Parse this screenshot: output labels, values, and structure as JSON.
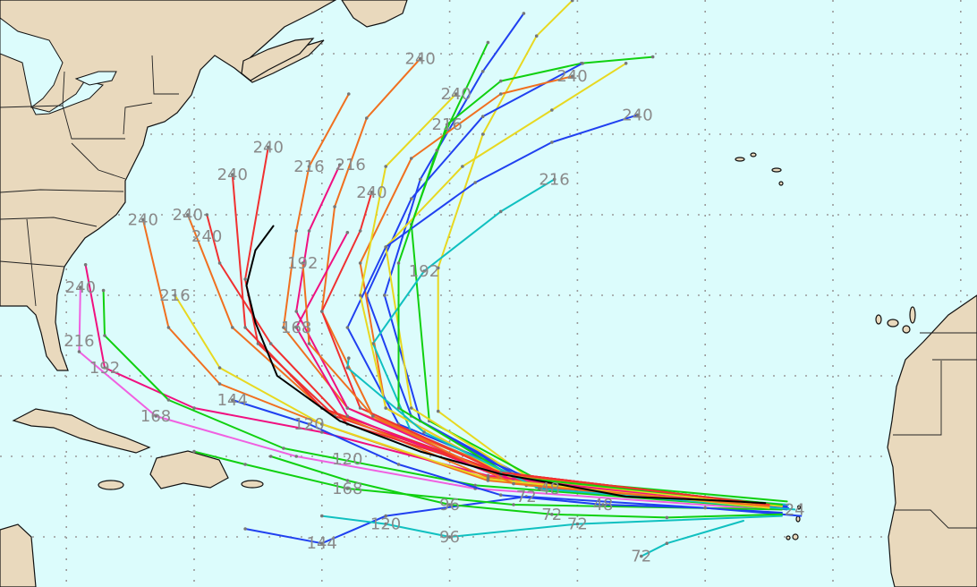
{
  "map": {
    "projection": "lon/lat equirectangular",
    "extent_lon": [
      -85,
      -8
    ],
    "extent_lat": [
      11,
      48
    ],
    "grid_step_lon": 10,
    "grid_step_lat": 5,
    "colors": {
      "ocean": "#dcfcfc",
      "land": "#e9d9bd",
      "consensus": "#000000",
      "label": "#8a8a8a"
    }
  },
  "consensus_track": {
    "color": "#000000",
    "points": [
      [
        -25.3,
        17.1
      ],
      [
        -30,
        17.3
      ],
      [
        -36.2,
        17.5
      ],
      [
        -41,
        18.2
      ],
      [
        -46,
        18.9
      ],
      [
        -52.3,
        20.3
      ],
      [
        -58.6,
        22.2
      ],
      [
        -63.5,
        25
      ],
      [
        -65.2,
        28.3
      ],
      [
        -65.9,
        30.6
      ],
      [
        -65.2,
        32.8
      ],
      [
        -63.8,
        34.3
      ]
    ]
  },
  "tracks": [
    {
      "color": "#2040f0",
      "points": [
        [
          -23.6,
          16.7
        ],
        [
          -43.2,
          18.3
        ],
        [
          -52.3,
          22.2
        ],
        [
          -55.1,
          30
        ],
        [
          -52.3,
          37.2
        ],
        [
          -47.4,
          43.9
        ],
        [
          -44.2,
          47.5
        ]
      ],
      "labels": []
    },
    {
      "color": "#e8d820",
      "points": [
        [
          -23.6,
          16.9
        ],
        [
          -43.2,
          18.3
        ],
        [
          -50.9,
          22.8
        ],
        [
          -50.9,
          31.7
        ],
        [
          -47.4,
          40
        ],
        [
          -43.2,
          46.1
        ],
        [
          -40.4,
          48.3
        ]
      ],
      "labels": []
    },
    {
      "color": "#10d010",
      "points": [
        [
          -23.6,
          17.2
        ],
        [
          -43.2,
          18.6
        ],
        [
          -51.6,
          22.2
        ],
        [
          -53,
          34.4
        ],
        [
          -50.2,
          40.6
        ],
        [
          -46,
          43.3
        ],
        [
          -39.7,
          44.4
        ],
        [
          -34.1,
          44.8
        ]
      ],
      "labels": [
        {
          "hour": "216",
          "pt": 4
        }
      ]
    },
    {
      "color": "#2040f0",
      "points": [
        [
          -23.6,
          16.9
        ],
        [
          -43.2,
          18.1
        ],
        [
          -53,
          22.5
        ],
        [
          -56.5,
          30
        ],
        [
          -53,
          36
        ],
        [
          -47.4,
          41.1
        ],
        [
          -39.6,
          44.4
        ]
      ],
      "labels": []
    },
    {
      "color": "#f07020",
      "points": [
        [
          -24,
          16.8
        ],
        [
          -44,
          18.2
        ],
        [
          -55,
          23
        ],
        [
          -57,
          32
        ],
        [
          -53,
          38.5
        ],
        [
          -46,
          42.5
        ],
        [
          -40.4,
          43.6
        ]
      ],
      "labels": [
        {
          "hour": "240",
          "pt": 6
        }
      ]
    },
    {
      "color": "#e8d820",
      "points": [
        [
          -24,
          16.9
        ],
        [
          -44,
          18.5
        ],
        [
          -53,
          23
        ],
        [
          -55,
          33
        ],
        [
          -49,
          38
        ],
        [
          -42,
          41.5
        ],
        [
          -36.2,
          44.4
        ]
      ],
      "labels": []
    },
    {
      "color": "#2040f0",
      "points": [
        [
          -23.5,
          16.8
        ],
        [
          -43,
          18.4
        ],
        [
          -54,
          22
        ],
        [
          -58,
          28
        ],
        [
          -55,
          33
        ],
        [
          -48,
          37
        ],
        [
          -42,
          39.5
        ],
        [
          -35.3,
          41.2
        ]
      ],
      "labels": [
        {
          "hour": "240",
          "pt": 7
        }
      ]
    },
    {
      "color": "#10c0c0",
      "points": [
        [
          -23.5,
          17
        ],
        [
          -43,
          18.2
        ],
        [
          -53,
          21.5
        ],
        [
          -56,
          27
        ],
        [
          -52,
          31.5
        ],
        [
          -46,
          35.2
        ],
        [
          -41.8,
          37.2
        ]
      ],
      "labels": [
        {
          "hour": "192",
          "pt": 4
        },
        {
          "hour": "216",
          "pt": 6
        }
      ]
    },
    {
      "color": "#f07020",
      "points": [
        [
          -24,
          16.7
        ],
        [
          -44,
          18.5
        ],
        [
          -56,
          22.5
        ],
        [
          -60,
          29
        ],
        [
          -59,
          35.5
        ],
        [
          -56.5,
          41
        ],
        [
          -52.3,
          44.7
        ]
      ],
      "labels": [
        {
          "hour": "240",
          "pt": 6
        }
      ]
    },
    {
      "color": "#f07020",
      "points": [
        [
          -24,
          16.9
        ],
        [
          -45,
          18.8
        ],
        [
          -58,
          23
        ],
        [
          -63,
          28
        ],
        [
          -62,
          34
        ],
        [
          -61,
          38
        ],
        [
          -57.9,
          42.5
        ]
      ],
      "labels": [
        {
          "hour": "216",
          "pt": 5
        }
      ]
    },
    {
      "color": "#f03030",
      "points": [
        [
          -25,
          17
        ],
        [
          -46,
          19
        ],
        [
          -59,
          22.5
        ],
        [
          -65,
          27
        ],
        [
          -66,
          31
        ],
        [
          -64.2,
          39.2
        ]
      ],
      "labels": [
        {
          "hour": "240",
          "pt": 5
        }
      ]
    },
    {
      "color": "#f07020",
      "points": [
        [
          -25,
          16.8
        ],
        [
          -47,
          18.5
        ],
        [
          -60,
          22
        ],
        [
          -68,
          24.5
        ],
        [
          -72,
          28
        ],
        [
          -74,
          34.7
        ]
      ],
      "labels": [
        {
          "hour": "240",
          "pt": 5
        }
      ]
    },
    {
      "color": "#f01080",
      "points": [
        [
          -25,
          16.9
        ],
        [
          -47,
          18.8
        ],
        [
          -60,
          21.5
        ],
        [
          -70,
          23
        ],
        [
          -77,
          25.5
        ],
        [
          -78.5,
          31.9
        ]
      ],
      "labels": [
        {
          "hour": "192",
          "pt": 4
        }
      ]
    },
    {
      "color": "#f060e0",
      "points": [
        [
          -25,
          16.7
        ],
        [
          -48,
          18
        ],
        [
          -62,
          20
        ],
        [
          -73,
          22.5
        ],
        [
          -79,
          26.5
        ],
        [
          -78.9,
          30.5
        ]
      ],
      "labels": [
        {
          "hour": "168",
          "pt": 3
        },
        {
          "hour": "216",
          "pt": 4
        },
        {
          "hour": "240",
          "pt": 5
        }
      ]
    },
    {
      "color": "#10d010",
      "points": [
        [
          -25,
          16.8
        ],
        [
          -48,
          18.2
        ],
        [
          -63,
          20.5
        ],
        [
          -72,
          23.5
        ],
        [
          -77,
          27.5
        ],
        [
          -77.1,
          30.3
        ]
      ],
      "labels": []
    },
    {
      "color": "#2040f0",
      "points": [
        [
          -24,
          16.5
        ],
        [
          -44,
          17.5
        ],
        [
          -55,
          16.3
        ],
        [
          -60,
          14.6
        ],
        [
          -66,
          15.5
        ]
      ],
      "labels": [
        {
          "hour": "72",
          "pt": 1
        },
        {
          "hour": "144",
          "pt": 3
        }
      ]
    },
    {
      "color": "#10c0c0",
      "points": [
        [
          -24,
          16.3
        ],
        [
          -40,
          15.8
        ],
        [
          -50,
          15
        ],
        [
          -55,
          15.8
        ],
        [
          -60,
          16.3
        ]
      ],
      "labels": [
        {
          "hour": "72",
          "pt": 1
        },
        {
          "hour": "96",
          "pt": 2
        },
        {
          "hour": "120",
          "pt": 3
        }
      ]
    },
    {
      "color": "#10d010",
      "points": [
        [
          -24,
          16.7
        ],
        [
          -45,
          17
        ],
        [
          -58,
          18
        ],
        [
          -66,
          19.5
        ],
        [
          -70,
          20.3
        ]
      ],
      "labels": [
        {
          "hour": "168",
          "pt": 2
        }
      ]
    },
    {
      "color": "#f07020",
      "points": [
        [
          -25,
          17
        ],
        [
          -47,
          18.7
        ],
        [
          -60,
          23
        ],
        [
          -67,
          28
        ],
        [
          -70.5,
          35
        ]
      ],
      "labels": [
        {
          "hour": "240",
          "pt": 4
        }
      ]
    },
    {
      "color": "#f03030",
      "points": [
        [
          -25,
          17
        ],
        [
          -46,
          19
        ],
        [
          -57,
          23
        ],
        [
          -60,
          29
        ],
        [
          -57,
          34
        ],
        [
          -56.1,
          36.4
        ]
      ],
      "labels": [
        {
          "hour": "240",
          "pt": 5
        }
      ]
    },
    {
      "color": "#f01080",
      "points": [
        [
          -25,
          16.8
        ],
        [
          -46,
          18.8
        ],
        [
          -58,
          23
        ],
        [
          -62,
          29
        ],
        [
          -61,
          34
        ],
        [
          -58.6,
          38.1
        ]
      ],
      "labels": [
        {
          "hour": "216",
          "pt": 5
        }
      ]
    },
    {
      "color": "#e8d820",
      "points": [
        [
          -24,
          16.9
        ],
        [
          -45,
          18.6
        ],
        [
          -55,
          23
        ],
        [
          -57,
          30
        ],
        [
          -55,
          38
        ],
        [
          -49.5,
          42.5
        ]
      ],
      "labels": [
        {
          "hour": "240",
          "pt": 5
        }
      ]
    },
    {
      "color": "#10d010",
      "points": [
        [
          -24,
          17
        ],
        [
          -45,
          18.7
        ],
        [
          -54,
          23
        ],
        [
          -54,
          32
        ],
        [
          -51,
          39
        ],
        [
          -47,
          45.7
        ]
      ],
      "labels": []
    },
    {
      "color": "#f03030",
      "points": [
        [
          -25,
          17
        ],
        [
          -46,
          19
        ],
        [
          -60,
          23
        ],
        [
          -66,
          28
        ],
        [
          -67,
          37.5
        ]
      ],
      "labels": [
        {
          "hour": "240",
          "pt": 4
        }
      ]
    },
    {
      "color": "#f01080",
      "points": [
        [
          -25,
          16.8
        ],
        [
          -46,
          18.7
        ],
        [
          -58,
          22.5
        ],
        [
          -62,
          28
        ],
        [
          -58,
          33.9
        ]
      ],
      "labels": [
        {
          "hour": "168",
          "pt": 3
        }
      ]
    },
    {
      "color": "#10c0c0",
      "points": [
        [
          -23,
          16.7
        ],
        [
          -43,
          18
        ],
        [
          -52,
          21.5
        ],
        [
          -58,
          25.5
        ],
        [
          -57.9,
          26.1
        ]
      ],
      "labels": [
        {
          "hour": "24",
          "pt": 0
        },
        {
          "hour": "48",
          "pt": 1
        }
      ]
    },
    {
      "color": "#e8d820",
      "points": [
        [
          -25,
          16.8
        ],
        [
          -47,
          18.6
        ],
        [
          -60,
          22
        ],
        [
          -68,
          25.5
        ],
        [
          -71.5,
          30
        ]
      ],
      "labels": [
        {
          "hour": "216",
          "pt": 4
        }
      ]
    },
    {
      "color": "#f03030",
      "points": [
        [
          -25,
          17
        ],
        [
          -46,
          19
        ],
        [
          -58,
          22
        ],
        [
          -64,
          27
        ],
        [
          -68,
          32
        ],
        [
          -69,
          35
        ]
      ],
      "labels": [
        {
          "hour": "240",
          "pt": 5
        }
      ]
    },
    {
      "color": "#2040f0",
      "points": [
        [
          -22.5,
          16.3
        ],
        [
          -30,
          16.8
        ],
        [
          -38,
          17
        ],
        [
          -46,
          17.6
        ],
        [
          -54,
          19.5
        ],
        [
          -61,
          22
        ],
        [
          -67,
          23.5
        ]
      ],
      "labels": [
        {
          "hour": "48",
          "pt": 2
        },
        {
          "hour": "120",
          "pt": 5
        },
        {
          "hour": "144",
          "pt": 6
        }
      ]
    },
    {
      "color": "#10d010",
      "points": [
        [
          -24,
          16.4
        ],
        [
          -33,
          16.2
        ],
        [
          -42,
          16.4
        ],
        [
          -50,
          17
        ],
        [
          -58,
          18.5
        ],
        [
          -64,
          20
        ]
      ],
      "labels": [
        {
          "hour": "72",
          "pt": 2
        },
        {
          "hour": "96",
          "pt": 3
        },
        {
          "hour": "120",
          "pt": 4
        }
      ]
    },
    {
      "color": "#f07020",
      "points": [
        [
          -25,
          16.9
        ],
        [
          -45,
          18.3
        ],
        [
          -56,
          22.5
        ],
        [
          -61,
          27
        ],
        [
          -61.5,
          32
        ]
      ],
      "labels": [
        {
          "hour": "192",
          "pt": 4
        }
      ]
    },
    {
      "color": "#10c0c0",
      "points": [
        [
          -27,
          16
        ],
        [
          -33,
          14.6
        ],
        [
          -35,
          13.8
        ]
      ],
      "labels": [
        {
          "hour": "72",
          "pt": 2
        }
      ]
    }
  ]
}
